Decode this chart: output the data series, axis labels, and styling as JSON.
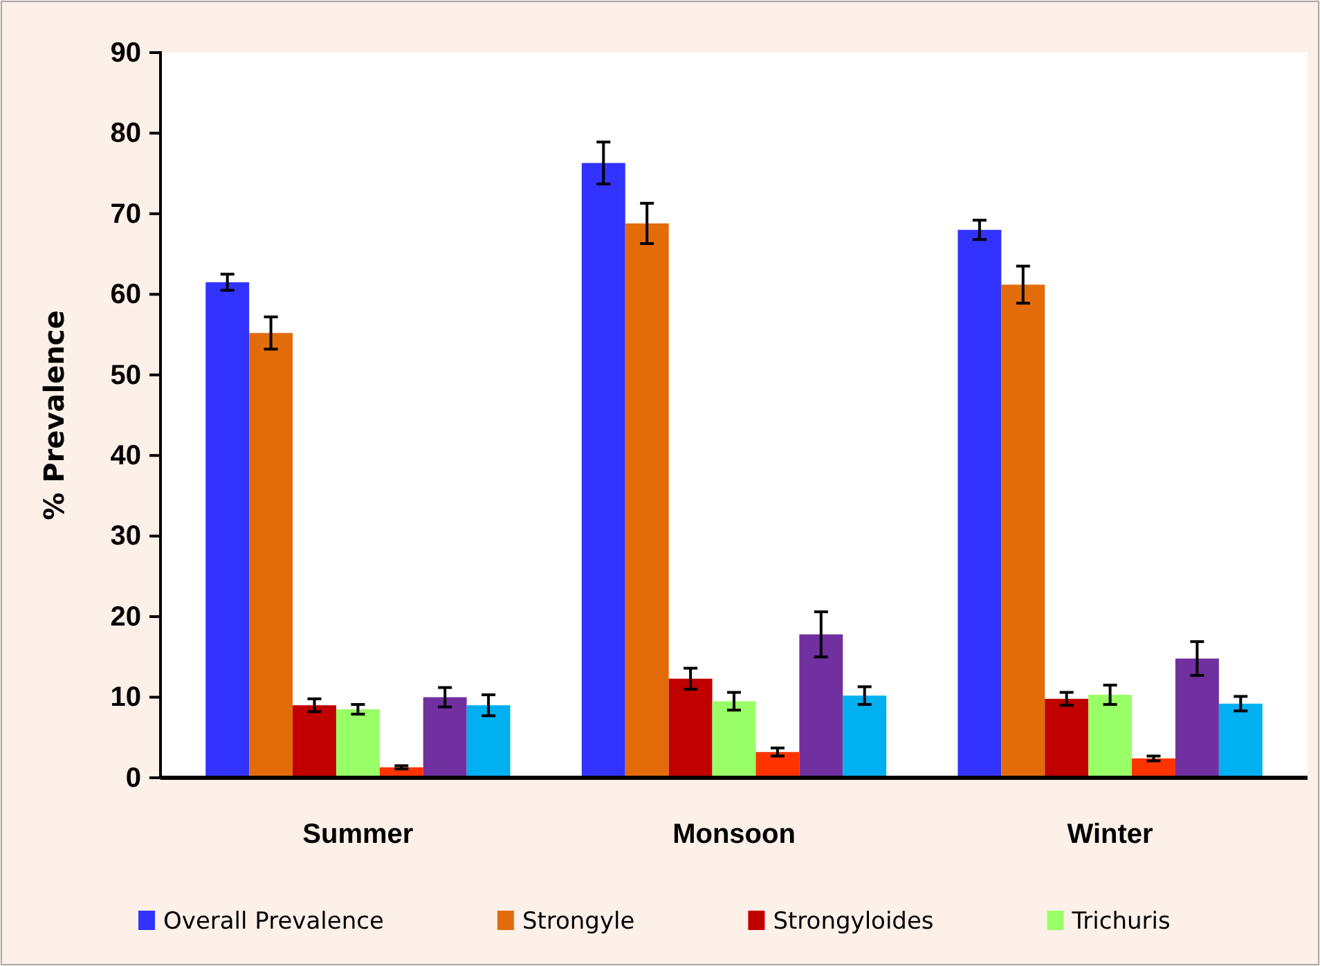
{
  "chart_data": {
    "type": "bar",
    "ylabel": "% Prevalence",
    "categories": [
      "Summer",
      "Monsoon",
      "Winter"
    ],
    "series": [
      {
        "name": "Overall Prevalence",
        "color": "#3333ff",
        "values": [
          61.5,
          76.3,
          68.0
        ],
        "errors": [
          1.0,
          2.6,
          1.2
        ]
      },
      {
        "name": "Strongyle",
        "color": "#e36c0a",
        "values": [
          55.2,
          68.8,
          61.2
        ],
        "errors": [
          2.0,
          2.5,
          2.3
        ]
      },
      {
        "name": "Strongyloides",
        "color": "#c00000",
        "values": [
          9.0,
          12.3,
          9.8
        ],
        "errors": [
          0.8,
          1.3,
          0.8
        ]
      },
      {
        "name": "Trichuris",
        "color": "#99ff66",
        "values": [
          8.5,
          9.5,
          10.3
        ],
        "errors": [
          0.6,
          1.1,
          1.2
        ]
      },
      {
        "color": "#ff3300",
        "values": [
          1.3,
          3.2,
          2.4
        ],
        "errors": [
          0.2,
          0.5,
          0.3
        ]
      },
      {
        "color": "#7030a0",
        "values": [
          10.0,
          17.8,
          14.8
        ],
        "errors": [
          1.2,
          2.8,
          2.1
        ]
      },
      {
        "color": "#00b0f0",
        "values": [
          9.0,
          10.2,
          9.2
        ],
        "errors": [
          1.3,
          1.1,
          0.9
        ]
      }
    ],
    "ylim": [
      0,
      90
    ],
    "yticks": [
      0,
      10,
      20,
      30,
      40,
      50,
      60,
      70,
      80,
      90
    ],
    "grid": false,
    "legend": "bottom"
  }
}
